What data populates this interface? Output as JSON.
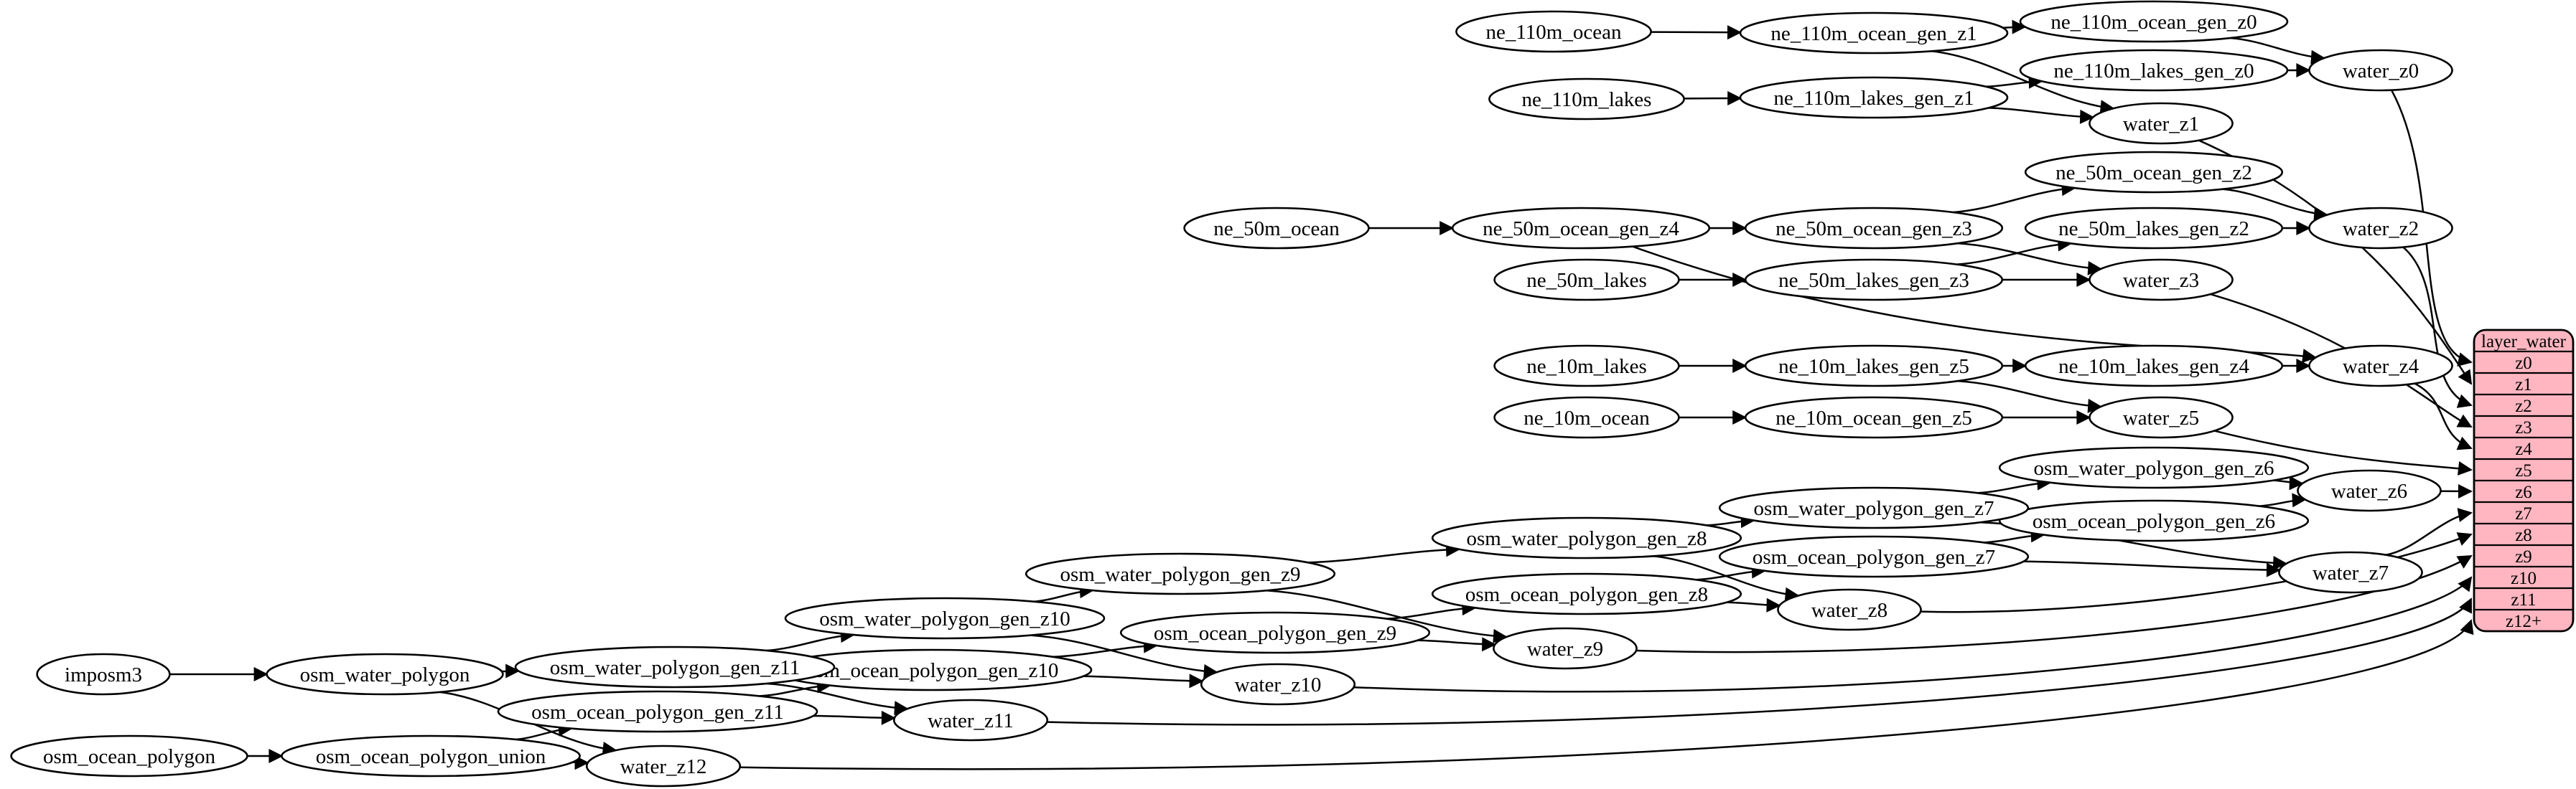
{
  "diagram": {
    "kind": "etl-dependency-graph",
    "colors": {
      "background": "#ffffff",
      "node_fill": "#ffffff",
      "node_stroke": "#000000",
      "edge_color": "#000000",
      "text_color": "#000000",
      "table_fill": "#ffb6c1",
      "table_stroke": "#000000"
    },
    "table": {
      "title": "layer_water",
      "rows": [
        "z0",
        "z1",
        "z2",
        "z3",
        "z4",
        "z5",
        "z6",
        "z7",
        "z8",
        "z9",
        "z10",
        "z11",
        "z12+"
      ]
    },
    "nodes": [
      {
        "id": "ne_110m_ocean",
        "label": "ne_110m_ocean"
      },
      {
        "id": "ne_110m_ocean_gen_z1",
        "label": "ne_110m_ocean_gen_z1"
      },
      {
        "id": "ne_110m_ocean_gen_z0",
        "label": "ne_110m_ocean_gen_z0"
      },
      {
        "id": "ne_110m_lakes",
        "label": "ne_110m_lakes"
      },
      {
        "id": "ne_110m_lakes_gen_z1",
        "label": "ne_110m_lakes_gen_z1"
      },
      {
        "id": "ne_110m_lakes_gen_z0",
        "label": "ne_110m_lakes_gen_z0"
      },
      {
        "id": "water_z0",
        "label": "water_z0"
      },
      {
        "id": "water_z1",
        "label": "water_z1"
      },
      {
        "id": "ne_50m_ocean",
        "label": "ne_50m_ocean"
      },
      {
        "id": "ne_50m_ocean_gen_z4",
        "label": "ne_50m_ocean_gen_z4"
      },
      {
        "id": "ne_50m_ocean_gen_z3",
        "label": "ne_50m_ocean_gen_z3"
      },
      {
        "id": "ne_50m_ocean_gen_z2",
        "label": "ne_50m_ocean_gen_z2"
      },
      {
        "id": "ne_50m_lakes",
        "label": "ne_50m_lakes"
      },
      {
        "id": "ne_50m_lakes_gen_z3",
        "label": "ne_50m_lakes_gen_z3"
      },
      {
        "id": "ne_50m_lakes_gen_z2",
        "label": "ne_50m_lakes_gen_z2"
      },
      {
        "id": "water_z2",
        "label": "water_z2"
      },
      {
        "id": "water_z3",
        "label": "water_z3"
      },
      {
        "id": "ne_10m_lakes",
        "label": "ne_10m_lakes"
      },
      {
        "id": "ne_10m_lakes_gen_z5",
        "label": "ne_10m_lakes_gen_z5"
      },
      {
        "id": "ne_10m_lakes_gen_z4",
        "label": "ne_10m_lakes_gen_z4"
      },
      {
        "id": "water_z4",
        "label": "water_z4"
      },
      {
        "id": "ne_10m_ocean",
        "label": "ne_10m_ocean"
      },
      {
        "id": "ne_10m_ocean_gen_z5",
        "label": "ne_10m_ocean_gen_z5"
      },
      {
        "id": "water_z5",
        "label": "water_z5"
      },
      {
        "id": "osm_water_polygon_gen_z6",
        "label": "osm_water_polygon_gen_z6"
      },
      {
        "id": "osm_ocean_polygon_gen_z6",
        "label": "osm_ocean_polygon_gen_z6"
      },
      {
        "id": "water_z6",
        "label": "water_z6"
      },
      {
        "id": "osm_water_polygon_gen_z7",
        "label": "osm_water_polygon_gen_z7"
      },
      {
        "id": "osm_ocean_polygon_gen_z7",
        "label": "osm_ocean_polygon_gen_z7"
      },
      {
        "id": "water_z7",
        "label": "water_z7"
      },
      {
        "id": "osm_water_polygon_gen_z8",
        "label": "osm_water_polygon_gen_z8"
      },
      {
        "id": "osm_ocean_polygon_gen_z8",
        "label": "osm_ocean_polygon_gen_z8"
      },
      {
        "id": "water_z8",
        "label": "water_z8"
      },
      {
        "id": "osm_water_polygon_gen_z9",
        "label": "osm_water_polygon_gen_z9"
      },
      {
        "id": "osm_ocean_polygon_gen_z9",
        "label": "osm_ocean_polygon_gen_z9"
      },
      {
        "id": "water_z9",
        "label": "water_z9"
      },
      {
        "id": "osm_water_polygon_gen_z10",
        "label": "osm_water_polygon_gen_z10"
      },
      {
        "id": "osm_ocean_polygon_gen_z10",
        "label": "osm_ocean_polygon_gen_z10"
      },
      {
        "id": "water_z10",
        "label": "water_z10"
      },
      {
        "id": "osm_water_polygon_gen_z11",
        "label": "osm_water_polygon_gen_z11"
      },
      {
        "id": "osm_ocean_polygon_gen_z11",
        "label": "osm_ocean_polygon_gen_z11"
      },
      {
        "id": "water_z11",
        "label": "water_z11"
      },
      {
        "id": "imposm3",
        "label": "imposm3"
      },
      {
        "id": "osm_water_polygon",
        "label": "osm_water_polygon"
      },
      {
        "id": "osm_ocean_polygon",
        "label": "osm_ocean_polygon"
      },
      {
        "id": "osm_ocean_polygon_union",
        "label": "osm_ocean_polygon_union"
      },
      {
        "id": "water_z12",
        "label": "water_z12"
      }
    ],
    "edges": [
      {
        "from": "ne_110m_ocean",
        "to": "ne_110m_ocean_gen_z1"
      },
      {
        "from": "ne_110m_ocean_gen_z1",
        "to": "ne_110m_ocean_gen_z0"
      },
      {
        "from": "ne_110m_ocean_gen_z1",
        "to": "water_z1"
      },
      {
        "from": "ne_110m_ocean_gen_z0",
        "to": "water_z0"
      },
      {
        "from": "ne_110m_lakes",
        "to": "ne_110m_lakes_gen_z1"
      },
      {
        "from": "ne_110m_lakes_gen_z1",
        "to": "ne_110m_lakes_gen_z0"
      },
      {
        "from": "ne_110m_lakes_gen_z1",
        "to": "water_z1"
      },
      {
        "from": "ne_110m_lakes_gen_z0",
        "to": "water_z0"
      },
      {
        "from": "ne_50m_ocean",
        "to": "ne_50m_ocean_gen_z4"
      },
      {
        "from": "ne_50m_ocean_gen_z4",
        "to": "ne_50m_ocean_gen_z3"
      },
      {
        "from": "ne_50m_ocean_gen_z4",
        "to": "water_z4"
      },
      {
        "from": "ne_50m_ocean_gen_z3",
        "to": "ne_50m_ocean_gen_z2"
      },
      {
        "from": "ne_50m_ocean_gen_z3",
        "to": "water_z3"
      },
      {
        "from": "ne_50m_ocean_gen_z2",
        "to": "water_z2"
      },
      {
        "from": "ne_50m_lakes",
        "to": "ne_50m_lakes_gen_z3"
      },
      {
        "from": "ne_50m_lakes_gen_z3",
        "to": "ne_50m_lakes_gen_z2"
      },
      {
        "from": "ne_50m_lakes_gen_z3",
        "to": "water_z3"
      },
      {
        "from": "ne_50m_lakes_gen_z2",
        "to": "water_z2"
      },
      {
        "from": "ne_10m_lakes",
        "to": "ne_10m_lakes_gen_z5"
      },
      {
        "from": "ne_10m_lakes_gen_z5",
        "to": "ne_10m_lakes_gen_z4"
      },
      {
        "from": "ne_10m_lakes_gen_z5",
        "to": "water_z5"
      },
      {
        "from": "ne_10m_lakes_gen_z4",
        "to": "water_z4"
      },
      {
        "from": "ne_10m_ocean",
        "to": "ne_10m_ocean_gen_z5"
      },
      {
        "from": "ne_10m_ocean_gen_z5",
        "to": "water_z5"
      },
      {
        "from": "imposm3",
        "to": "osm_water_polygon"
      },
      {
        "from": "osm_water_polygon",
        "to": "osm_water_polygon_gen_z11"
      },
      {
        "from": "osm_water_polygon",
        "to": "water_z12"
      },
      {
        "from": "osm_ocean_polygon",
        "to": "osm_ocean_polygon_union"
      },
      {
        "from": "osm_ocean_polygon_union",
        "to": "osm_ocean_polygon_gen_z11"
      },
      {
        "from": "osm_ocean_polygon_union",
        "to": "water_z12"
      },
      {
        "from": "osm_water_polygon_gen_z11",
        "to": "osm_water_polygon_gen_z10"
      },
      {
        "from": "osm_water_polygon_gen_z11",
        "to": "water_z11"
      },
      {
        "from": "osm_ocean_polygon_gen_z11",
        "to": "osm_ocean_polygon_gen_z10"
      },
      {
        "from": "osm_ocean_polygon_gen_z11",
        "to": "water_z11"
      },
      {
        "from": "osm_water_polygon_gen_z10",
        "to": "osm_water_polygon_gen_z9"
      },
      {
        "from": "osm_water_polygon_gen_z10",
        "to": "water_z10"
      },
      {
        "from": "osm_ocean_polygon_gen_z10",
        "to": "osm_ocean_polygon_gen_z9"
      },
      {
        "from": "osm_ocean_polygon_gen_z10",
        "to": "water_z10"
      },
      {
        "from": "osm_water_polygon_gen_z9",
        "to": "osm_water_polygon_gen_z8"
      },
      {
        "from": "osm_water_polygon_gen_z9",
        "to": "water_z9"
      },
      {
        "from": "osm_ocean_polygon_gen_z9",
        "to": "osm_ocean_polygon_gen_z8"
      },
      {
        "from": "osm_ocean_polygon_gen_z9",
        "to": "water_z9"
      },
      {
        "from": "osm_water_polygon_gen_z8",
        "to": "osm_water_polygon_gen_z7"
      },
      {
        "from": "osm_water_polygon_gen_z8",
        "to": "water_z8"
      },
      {
        "from": "osm_ocean_polygon_gen_z8",
        "to": "osm_ocean_polygon_gen_z7"
      },
      {
        "from": "osm_ocean_polygon_gen_z8",
        "to": "water_z8"
      },
      {
        "from": "osm_water_polygon_gen_z7",
        "to": "osm_water_polygon_gen_z6"
      },
      {
        "from": "osm_water_polygon_gen_z7",
        "to": "water_z7"
      },
      {
        "from": "osm_ocean_polygon_gen_z7",
        "to": "osm_ocean_polygon_gen_z6"
      },
      {
        "from": "osm_ocean_polygon_gen_z7",
        "to": "water_z7"
      },
      {
        "from": "osm_water_polygon_gen_z6",
        "to": "water_z6"
      },
      {
        "from": "osm_ocean_polygon_gen_z6",
        "to": "water_z6"
      },
      {
        "from": "water_z0",
        "to": "layer_water.z0"
      },
      {
        "from": "water_z1",
        "to": "layer_water.z1"
      },
      {
        "from": "water_z2",
        "to": "layer_water.z2"
      },
      {
        "from": "water_z3",
        "to": "layer_water.z3"
      },
      {
        "from": "water_z4",
        "to": "layer_water.z4"
      },
      {
        "from": "water_z5",
        "to": "layer_water.z5"
      },
      {
        "from": "water_z6",
        "to": "layer_water.z6"
      },
      {
        "from": "water_z7",
        "to": "layer_water.z7"
      },
      {
        "from": "water_z8",
        "to": "layer_water.z8"
      },
      {
        "from": "water_z9",
        "to": "layer_water.z9"
      },
      {
        "from": "water_z10",
        "to": "layer_water.z10"
      },
      {
        "from": "water_z11",
        "to": "layer_water.z11"
      },
      {
        "from": "water_z12",
        "to": "layer_water.z12+"
      }
    ]
  }
}
